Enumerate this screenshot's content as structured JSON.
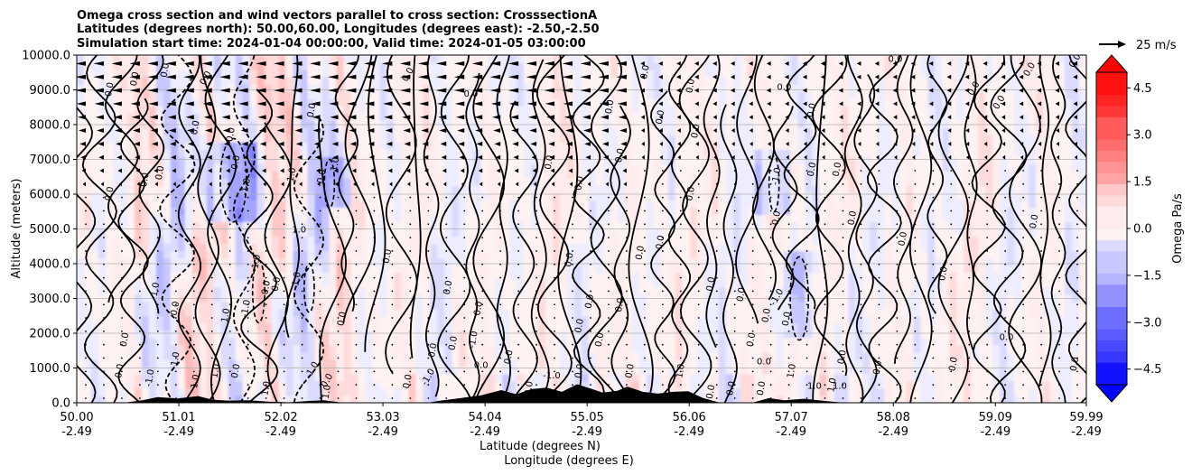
{
  "chart_data": {
    "type": "heatmap",
    "title_lines": [
      "Omega cross section and wind vectors parallel to cross section: CrosssectionA",
      "Latitudes (degrees north): 50.00,60.00, Longitudes (degrees east): -2.50,-2.50",
      "Simulation start time: 2024-01-04 00:00:00, Valid time: 2024-01-05 03:00:00"
    ],
    "ylabel": "Altitude (meters)",
    "xlabel_lines": [
      "Latitude (degrees N)",
      "Longitude (degrees E)"
    ],
    "ylim": [
      0,
      10000
    ],
    "xlim": [
      50.0,
      59.99
    ],
    "y_ticks": [
      {
        "value": 0,
        "label": "0.0"
      },
      {
        "value": 1000,
        "label": "1000.0"
      },
      {
        "value": 2000,
        "label": "2000.0"
      },
      {
        "value": 3000,
        "label": "3000.0"
      },
      {
        "value": 4000,
        "label": "4000.0"
      },
      {
        "value": 5000,
        "label": "5000.0"
      },
      {
        "value": 6000,
        "label": "6000.0"
      },
      {
        "value": 7000,
        "label": "7000.0"
      },
      {
        "value": 8000,
        "label": "8000.0"
      },
      {
        "value": 9000,
        "label": "9000.0"
      },
      {
        "value": 10000,
        "label": "10000.0"
      }
    ],
    "x_ticks": [
      {
        "value": 50.0,
        "lat": "50.00",
        "lon": "-2.49"
      },
      {
        "value": 51.01,
        "lat": "51.01",
        "lon": "-2.49"
      },
      {
        "value": 52.02,
        "lat": "52.02",
        "lon": "-2.49"
      },
      {
        "value": 53.03,
        "lat": "53.03",
        "lon": "-2.49"
      },
      {
        "value": 54.04,
        "lat": "54.04",
        "lon": "-2.49"
      },
      {
        "value": 55.05,
        "lat": "55.05",
        "lon": "-2.49"
      },
      {
        "value": 56.06,
        "lat": "56.06",
        "lon": "-2.49"
      },
      {
        "value": 57.07,
        "lat": "57.07",
        "lon": "-2.49"
      },
      {
        "value": 58.08,
        "lat": "58.08",
        "lon": "-2.49"
      },
      {
        "value": 59.09,
        "lat": "59.09",
        "lon": "-2.49"
      },
      {
        "value": 59.99,
        "lat": "59.99",
        "lon": "-2.49"
      }
    ],
    "grid": "horizontal",
    "colorbar": {
      "label": "Omega Pa/s",
      "range": [
        -5.0,
        5.0
      ],
      "ticks": [
        {
          "value": 4.5,
          "label": "4.5"
        },
        {
          "value": 3.0,
          "label": "3.0"
        },
        {
          "value": 1.5,
          "label": "1.5"
        },
        {
          "value": 0.0,
          "label": "0.0"
        },
        {
          "value": -1.5,
          "label": "−1.5"
        },
        {
          "value": -3.0,
          "label": "−3.0"
        },
        {
          "value": -4.5,
          "label": "−4.5"
        }
      ],
      "colormap": "bwr",
      "extend": "both",
      "neg_color": "#0000ff",
      "pos_color": "#ff0000"
    },
    "quiver_key": {
      "label": "25 m/s",
      "speed": 25
    },
    "terrain": [
      {
        "lat": 50.0,
        "alt": 0
      },
      {
        "lat": 50.5,
        "alt": 0
      },
      {
        "lat": 50.65,
        "alt": 60
      },
      {
        "lat": 50.8,
        "alt": 150
      },
      {
        "lat": 51.0,
        "alt": 110
      },
      {
        "lat": 51.2,
        "alt": 180
      },
      {
        "lat": 51.35,
        "alt": 70
      },
      {
        "lat": 51.5,
        "alt": 50
      },
      {
        "lat": 51.7,
        "alt": 60
      },
      {
        "lat": 51.9,
        "alt": 20
      },
      {
        "lat": 52.1,
        "alt": 0
      },
      {
        "lat": 52.3,
        "alt": 40
      },
      {
        "lat": 52.45,
        "alt": 60
      },
      {
        "lat": 52.6,
        "alt": 0
      },
      {
        "lat": 53.5,
        "alt": 0
      },
      {
        "lat": 53.6,
        "alt": 50
      },
      {
        "lat": 53.8,
        "alt": 120
      },
      {
        "lat": 54.0,
        "alt": 200
      },
      {
        "lat": 54.2,
        "alt": 350
      },
      {
        "lat": 54.35,
        "alt": 230
      },
      {
        "lat": 54.5,
        "alt": 380
      },
      {
        "lat": 54.65,
        "alt": 420
      },
      {
        "lat": 54.8,
        "alt": 300
      },
      {
        "lat": 54.95,
        "alt": 520
      },
      {
        "lat": 55.1,
        "alt": 380
      },
      {
        "lat": 55.2,
        "alt": 280
      },
      {
        "lat": 55.35,
        "alt": 330
      },
      {
        "lat": 55.45,
        "alt": 450
      },
      {
        "lat": 55.6,
        "alt": 300
      },
      {
        "lat": 55.75,
        "alt": 250
      },
      {
        "lat": 55.9,
        "alt": 300
      },
      {
        "lat": 56.05,
        "alt": 320
      },
      {
        "lat": 56.2,
        "alt": 120
      },
      {
        "lat": 56.35,
        "alt": 0
      },
      {
        "lat": 56.7,
        "alt": 0
      },
      {
        "lat": 56.85,
        "alt": 120
      },
      {
        "lat": 57.0,
        "alt": 60
      },
      {
        "lat": 57.2,
        "alt": 100
      },
      {
        "lat": 57.4,
        "alt": 40
      },
      {
        "lat": 57.55,
        "alt": 0
      },
      {
        "lat": 59.99,
        "alt": 0
      }
    ],
    "contour_labels": [
      {
        "text": "0.0",
        "lat": 51.3,
        "alt": 9300,
        "rot": -60
      },
      {
        "text": "0.0",
        "lat": 50.9,
        "alt": 9550,
        "rot": -80
      },
      {
        "text": "0.0",
        "lat": 50.35,
        "alt": 9000,
        "rot": -80
      },
      {
        "text": "0.0",
        "lat": 50.6,
        "alt": 9300,
        "rot": -80
      },
      {
        "text": "0.0",
        "lat": 52.35,
        "alt": 8400,
        "rot": -80
      },
      {
        "text": "0.0",
        "lat": 51.2,
        "alt": 7900,
        "rot": -80
      },
      {
        "text": "0.0",
        "lat": 51.55,
        "alt": 7700,
        "rot": -80
      },
      {
        "text": "0.0",
        "lat": 50.35,
        "alt": 6000,
        "rot": -80
      },
      {
        "text": "0.0",
        "lat": 50.7,
        "alt": 6400,
        "rot": -80
      },
      {
        "text": "0.0",
        "lat": 50.85,
        "alt": 6600,
        "rot": -80
      },
      {
        "text": "-1.0",
        "lat": 51.7,
        "alt": 6200,
        "rot": -80
      },
      {
        "text": "-1.0",
        "lat": 52.15,
        "alt": 6500,
        "rot": -80
      },
      {
        "text": "-1.0",
        "lat": 52.58,
        "alt": 6800,
        "rot": -80
      },
      {
        "text": "0.0",
        "lat": 52.45,
        "alt": 6500,
        "rot": -80
      },
      {
        "text": "0.0",
        "lat": 51.6,
        "alt": 6900,
        "rot": -80
      },
      {
        "text": "1.0",
        "lat": 52.2,
        "alt": 4900,
        "rot": 0
      },
      {
        "text": "-1.0",
        "lat": 51.8,
        "alt": 4000,
        "rot": -80
      },
      {
        "text": "-1.0",
        "lat": 52.2,
        "alt": 3500,
        "rot": -80
      },
      {
        "text": "0.0",
        "lat": 51.9,
        "alt": 3300,
        "rot": -80
      },
      {
        "text": "0.0",
        "lat": 52.0,
        "alt": 3400,
        "rot": -80
      },
      {
        "text": "-1.0",
        "lat": 50.8,
        "alt": 3200,
        "rot": -80
      },
      {
        "text": "0.0",
        "lat": 51.0,
        "alt": 2700,
        "rot": -80
      },
      {
        "text": "1.0",
        "lat": 51.5,
        "alt": 2500,
        "rot": -80
      },
      {
        "text": "-1.0",
        "lat": 51.7,
        "alt": 2700,
        "rot": -80
      },
      {
        "text": "0.0",
        "lat": 52.65,
        "alt": 2400,
        "rot": -80
      },
      {
        "text": "0.0",
        "lat": 50.5,
        "alt": 1800,
        "rot": -80
      },
      {
        "text": "0.0",
        "lat": 50.45,
        "alt": 900,
        "rot": -80
      },
      {
        "text": "-1.0",
        "lat": 50.75,
        "alt": 700,
        "rot": -80
      },
      {
        "text": "-1.0",
        "lat": 51.0,
        "alt": 1200,
        "rot": -80
      },
      {
        "text": "1.0",
        "lat": 51.2,
        "alt": 600,
        "rot": -80
      },
      {
        "text": "0.0",
        "lat": 51.6,
        "alt": 900,
        "rot": -80
      },
      {
        "text": "1.0",
        "lat": 51.4,
        "alt": 900,
        "rot": -80
      },
      {
        "text": "-1.0",
        "lat": 52.35,
        "alt": 900,
        "rot": -60
      },
      {
        "text": "0.0",
        "lat": 52.5,
        "alt": 600,
        "rot": -60
      },
      {
        "text": "1.0",
        "lat": 52.5,
        "alt": 300,
        "rot": -80
      },
      {
        "text": "1.0",
        "lat": 51.9,
        "alt": 400,
        "rot": -80
      },
      {
        "text": "0.0",
        "lat": 53.1,
        "alt": 4200,
        "rot": -80
      },
      {
        "text": "0.0",
        "lat": 53.7,
        "alt": 3300,
        "rot": -80
      },
      {
        "text": "0.0",
        "lat": 54.0,
        "alt": 2700,
        "rot": -80
      },
      {
        "text": "0.0",
        "lat": 53.55,
        "alt": 1500,
        "rot": -80
      },
      {
        "text": "0.0",
        "lat": 53.75,
        "alt": 1700,
        "rot": -80
      },
      {
        "text": "-1.0",
        "lat": 53.95,
        "alt": 1800,
        "rot": -80
      },
      {
        "text": "0.0",
        "lat": 54.0,
        "alt": 1000,
        "rot": 0
      },
      {
        "text": "0.0",
        "lat": 54.3,
        "alt": 1300,
        "rot": -80
      },
      {
        "text": "-1.0",
        "lat": 53.5,
        "alt": 700,
        "rot": -60
      },
      {
        "text": "0.0",
        "lat": 53.3,
        "alt": 600,
        "rot": -80
      },
      {
        "text": "-1.0",
        "lat": 54.7,
        "alt": 700,
        "rot": 0
      },
      {
        "text": "0.0",
        "lat": 54.5,
        "alt": 400,
        "rot": -80
      },
      {
        "text": "0.0",
        "lat": 55.0,
        "alt": 900,
        "rot": -80
      },
      {
        "text": "0.0",
        "lat": 55.5,
        "alt": 900,
        "rot": -80
      },
      {
        "text": "1.0",
        "lat": 56.0,
        "alt": 900,
        "rot": -80
      },
      {
        "text": "0.0",
        "lat": 56.5,
        "alt": 400,
        "rot": -80
      },
      {
        "text": "0.0",
        "lat": 56.8,
        "alt": 400,
        "rot": -80
      },
      {
        "text": "1.0",
        "lat": 57.3,
        "alt": 400,
        "rot": 0
      },
      {
        "text": "1.0",
        "lat": 57.5,
        "alt": 500,
        "rot": -80
      },
      {
        "text": "0.0",
        "lat": 53.9,
        "alt": 8800,
        "rot": 0
      },
      {
        "text": "0.0",
        "lat": 53.3,
        "alt": 9400,
        "rot": -60
      },
      {
        "text": "0.0",
        "lat": 55.65,
        "alt": 9500,
        "rot": -80
      },
      {
        "text": "0.0",
        "lat": 56.1,
        "alt": 9100,
        "rot": -80
      },
      {
        "text": "0.0",
        "lat": 55.8,
        "alt": 8200,
        "rot": -80
      },
      {
        "text": "0.0",
        "lat": 55.3,
        "alt": 8500,
        "rot": -80
      },
      {
        "text": "0.0",
        "lat": 56.15,
        "alt": 7800,
        "rot": -80
      },
      {
        "text": "0.0",
        "lat": 57.0,
        "alt": 9000,
        "rot": 0
      },
      {
        "text": "0.0",
        "lat": 58.1,
        "alt": 9800,
        "rot": 0
      },
      {
        "text": "0.0",
        "lat": 57.3,
        "alt": 8400,
        "rot": -80
      },
      {
        "text": "0.0",
        "lat": 59.45,
        "alt": 9550,
        "rot": -60
      },
      {
        "text": "0.0",
        "lat": 59.9,
        "alt": 9800,
        "rot": -60
      },
      {
        "text": "0.0",
        "lat": 58.9,
        "alt": 9000,
        "rot": -60
      },
      {
        "text": "0.0",
        "lat": 59.15,
        "alt": 8600,
        "rot": -60
      },
      {
        "text": "0.0",
        "lat": 55.4,
        "alt": 7100,
        "rot": -80
      },
      {
        "text": "0.0",
        "lat": 54.7,
        "alt": 6900,
        "rot": -80
      },
      {
        "text": "0.0",
        "lat": 55.0,
        "alt": 6300,
        "rot": -80
      },
      {
        "text": "0.0",
        "lat": 56.1,
        "alt": 6000,
        "rot": -80
      },
      {
        "text": "-1.0",
        "lat": 56.95,
        "alt": 6500,
        "rot": -80
      },
      {
        "text": "0.0",
        "lat": 57.3,
        "alt": 6700,
        "rot": -80
      },
      {
        "text": "0.0",
        "lat": 57.55,
        "alt": 6700,
        "rot": -80
      },
      {
        "text": "0.0",
        "lat": 56.95,
        "alt": 5300,
        "rot": -80
      },
      {
        "text": "0.0",
        "lat": 57.7,
        "alt": 5300,
        "rot": -80
      },
      {
        "text": "0.0",
        "lat": 58.2,
        "alt": 4700,
        "rot": -80
      },
      {
        "text": "0.0",
        "lat": 59.5,
        "alt": 5200,
        "rot": -80
      },
      {
        "text": "0.0",
        "lat": 55.6,
        "alt": 4300,
        "rot": -80
      },
      {
        "text": "0.0",
        "lat": 55.8,
        "alt": 4600,
        "rot": -80
      },
      {
        "text": "0.0",
        "lat": 54.9,
        "alt": 4100,
        "rot": -80
      },
      {
        "text": "0.0",
        "lat": 55.1,
        "alt": 2900,
        "rot": -80
      },
      {
        "text": "0.0",
        "lat": 55.4,
        "alt": 2800,
        "rot": -80
      },
      {
        "text": "0.0",
        "lat": 55.0,
        "alt": 2200,
        "rot": -80
      },
      {
        "text": "0.0",
        "lat": 55.2,
        "alt": 1800,
        "rot": -80
      },
      {
        "text": "0.0",
        "lat": 56.3,
        "alt": 3400,
        "rot": -80
      },
      {
        "text": "0.0",
        "lat": 56.6,
        "alt": 3100,
        "rot": -80
      },
      {
        "text": "0.0",
        "lat": 56.85,
        "alt": 2500,
        "rot": -80
      },
      {
        "text": "-1.0",
        "lat": 56.95,
        "alt": 3000,
        "rot": -60
      },
      {
        "text": "0.0",
        "lat": 57.05,
        "alt": 2400,
        "rot": -80
      },
      {
        "text": "0.0",
        "lat": 56.7,
        "alt": 1800,
        "rot": -80
      },
      {
        "text": "0.0",
        "lat": 56.8,
        "alt": 1100,
        "rot": 0
      },
      {
        "text": "0.0",
        "lat": 57.6,
        "alt": 1300,
        "rot": -80
      },
      {
        "text": "1.0",
        "lat": 57.1,
        "alt": 900,
        "rot": -80
      },
      {
        "text": "0.0",
        "lat": 58.6,
        "alt": 3700,
        "rot": -80
      },
      {
        "text": "0.0",
        "lat": 59.2,
        "alt": 1800,
        "rot": 0
      },
      {
        "text": "0.0",
        "lat": 58.7,
        "alt": 1100,
        "rot": -80
      },
      {
        "text": "0.0",
        "lat": 59.9,
        "alt": 1100,
        "rot": -80
      },
      {
        "text": "0.0",
        "lat": 57.95,
        "alt": 1000,
        "rot": -80
      },
      {
        "text": "1.0",
        "lat": 57.55,
        "alt": 400,
        "rot": 0
      },
      {
        "text": "0.0",
        "lat": 56.3,
        "alt": 300,
        "rot": -80
      }
    ]
  }
}
